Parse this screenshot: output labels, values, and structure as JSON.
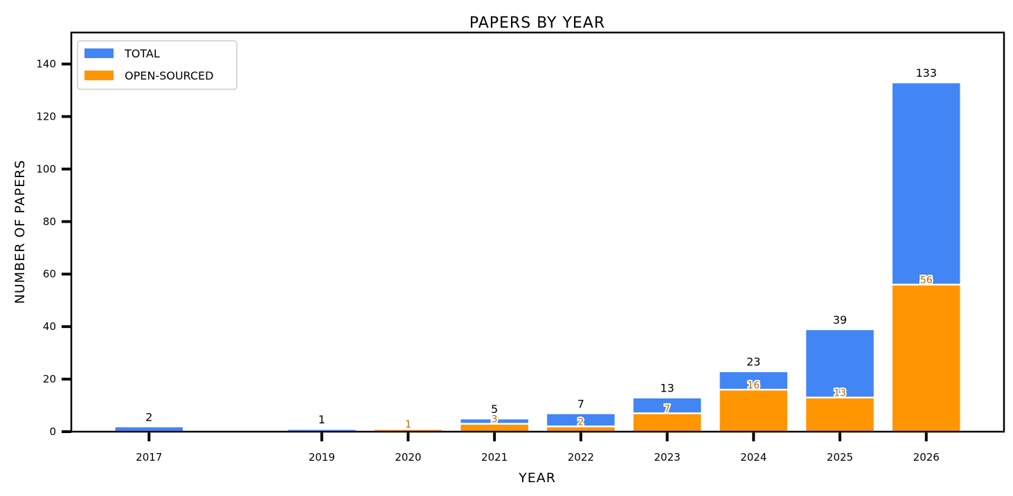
{
  "chart_data": {
    "type": "bar",
    "title": "PAPERS BY YEAR",
    "xlabel": "YEAR",
    "ylabel": "NUMBER OF PAPERS",
    "x": [
      2017,
      2019,
      2020,
      2021,
      2022,
      2023,
      2024,
      2025,
      2026
    ],
    "categories": [
      "2017",
      "2019",
      "2020",
      "2021",
      "2022",
      "2023",
      "2024",
      "2025",
      "2026"
    ],
    "series": [
      {
        "name": "TOTAL",
        "color": "#4285f4",
        "values": [
          2,
          1,
          0,
          5,
          7,
          13,
          23,
          39,
          133
        ]
      },
      {
        "name": "OPEN-SOURCED",
        "color": "#ff9500",
        "values": [
          0,
          0,
          1,
          3,
          2,
          7,
          16,
          13,
          56
        ]
      }
    ],
    "total_labels": [
      "2",
      "1",
      "",
      "5",
      "7",
      "13",
      "23",
      "39",
      "133"
    ],
    "open_labels": [
      "",
      "",
      "1",
      "3",
      "2",
      "7",
      "16",
      "13",
      "56"
    ],
    "ylim": [
      0,
      152
    ],
    "yticks": [
      0,
      20,
      40,
      60,
      80,
      100,
      120,
      140
    ],
    "xlim": [
      2016.1,
      2026.9
    ],
    "grid": false,
    "legend_position": "top-left",
    "label_colors": {
      "total": "#000000",
      "open": "#b86a00"
    }
  }
}
